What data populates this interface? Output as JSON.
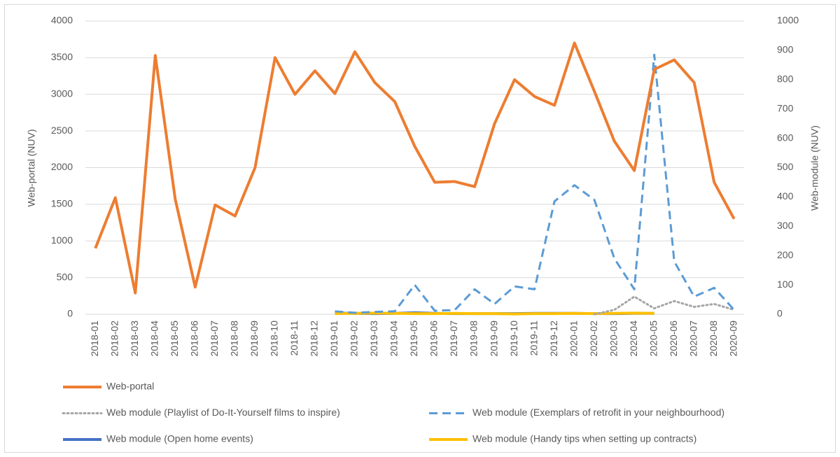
{
  "chart_data": {
    "type": "line",
    "y_label": "Web-portal (NUV)",
    "y2_label": "Web-module (NUV)",
    "categories": [
      "2018-01",
      "2018-02",
      "2018-03",
      "2018-04",
      "2018-05",
      "2018-06",
      "2018-07",
      "2018-08",
      "2018-09",
      "2018-10",
      "2018-11",
      "2018-12",
      "2019-01",
      "2019-02",
      "2019-03",
      "2019-04",
      "2019-05",
      "2019-06",
      "2019-07",
      "2019-08",
      "2019-09",
      "2019-10",
      "2019-11",
      "2019-12",
      "2020-01",
      "2020-02",
      "2020-03",
      "2020-04",
      "2020-05",
      "2020-06",
      "2020-07",
      "2020-08",
      "2020-09"
    ],
    "ylim": [
      0,
      4000
    ],
    "yticks": [
      0,
      500,
      1000,
      1500,
      2000,
      2500,
      3000,
      3500,
      4000
    ],
    "y2lim": [
      0,
      1000
    ],
    "y2ticks": [
      0,
      100,
      200,
      300,
      400,
      500,
      600,
      700,
      800,
      900,
      1000
    ],
    "grid": true,
    "legend": "bottom",
    "series": [
      {
        "name": "Web-portal",
        "color": "#ed7d31",
        "style": "solid",
        "axis": "y",
        "values": [
          900,
          1590,
          290,
          3530,
          1570,
          370,
          1490,
          1340,
          2000,
          3500,
          3000,
          3320,
          3010,
          3580,
          3160,
          2900,
          2290,
          1800,
          1810,
          1740,
          2600,
          3200,
          2970,
          2850,
          3700,
          3040,
          2360,
          1960,
          3340,
          3470,
          3160,
          1800,
          1300
        ]
      },
      {
        "name": "Web module (Exemplars of retrofit in your neighbourhood)",
        "color": "#5b9bd5",
        "style": "dashed",
        "axis": "y2",
        "values": [
          null,
          null,
          null,
          null,
          null,
          null,
          null,
          null,
          null,
          null,
          null,
          null,
          10,
          5,
          8,
          10,
          100,
          12,
          14,
          85,
          35,
          95,
          85,
          385,
          440,
          390,
          190,
          85,
          885,
          180,
          60,
          90,
          15
        ]
      },
      {
        "name": "Web module (Playlist of Do-It-Yourself films to inspire)",
        "color": "#a5a5a5",
        "style": "dotted",
        "axis": "y2",
        "values": [
          null,
          null,
          null,
          null,
          null,
          null,
          null,
          null,
          null,
          null,
          null,
          null,
          null,
          null,
          null,
          null,
          null,
          null,
          null,
          null,
          null,
          null,
          null,
          null,
          null,
          0,
          15,
          60,
          20,
          45,
          25,
          35,
          15
        ]
      },
      {
        "name": "Web module (Handy tips when setting up contracts)",
        "color": "#ffc000",
        "style": "solid",
        "axis": "y2",
        "values": [
          null,
          null,
          null,
          null,
          null,
          null,
          null,
          null,
          null,
          null,
          null,
          null,
          2,
          3,
          4,
          3,
          2,
          2,
          3,
          2,
          2,
          1,
          2,
          2,
          3,
          2,
          3,
          4,
          3,
          null,
          null,
          null,
          null
        ]
      },
      {
        "name": "Web module (Open home events)",
        "color": "#4472c4",
        "style": "solid",
        "axis": "y2",
        "values": [
          null,
          null,
          null,
          null,
          null,
          null,
          null,
          null,
          null,
          null,
          null,
          null,
          4,
          3,
          2,
          3,
          5,
          3,
          2,
          2,
          2,
          2,
          3,
          3,
          3,
          2,
          2,
          3,
          3,
          null,
          null,
          null,
          null
        ]
      }
    ]
  }
}
